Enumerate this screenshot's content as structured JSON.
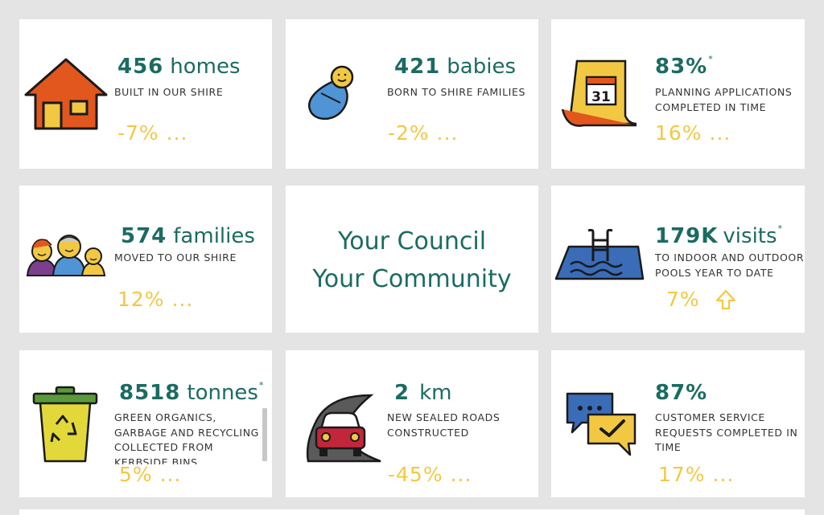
{
  "tiles": [
    {
      "number": "456",
      "unit": "homes",
      "asterisk": "",
      "description": [
        "BUILT IN OUR SHIRE"
      ],
      "trend": "-7% ..."
    },
    {
      "number": "421",
      "unit": "babies",
      "asterisk": "",
      "description": [
        "BORN TO SHIRE FAMILIES"
      ],
      "trend": "-2% ..."
    },
    {
      "number": "83%",
      "unit": "",
      "asterisk": "*",
      "description": [
        "PLANNING APPLICATIONS",
        "COMPLETED IN TIME"
      ],
      "trend": "16% ..."
    },
    {
      "number": "574",
      "unit": "families",
      "asterisk": "",
      "description": [
        "MOVED TO OUR SHIRE"
      ],
      "trend": "12% ..."
    },
    {
      "title_line1": "Your Council",
      "title_line2": "Your Community"
    },
    {
      "number": "179K",
      "unit": "visits",
      "asterisk": "*",
      "description": [
        "TO INDOOR AND OUTDOOR",
        "POOLS YEAR TO DATE"
      ],
      "trend": "7%",
      "trend_icon": "arrow-up-icon"
    },
    {
      "number": "8518",
      "unit": "tonnes",
      "asterisk": "*",
      "description": [
        "GREEN ORGANICS,",
        "GARBAGE AND RECYCLING",
        "COLLECTED FROM",
        "KERBSIDE BINS"
      ],
      "trend": "5% ..."
    },
    {
      "number": "2",
      "unit": "km",
      "asterisk": "",
      "description": [
        "NEW SEALED ROADS",
        "CONSTRUCTED"
      ],
      "trend": "-45% ..."
    },
    {
      "number": "87%",
      "unit": "",
      "asterisk": "",
      "description": [
        "CUSTOMER SERVICE",
        "REQUESTS COMPLETED IN",
        "TIME"
      ],
      "trend": "17% ..."
    }
  ],
  "icons": [
    "house-icon",
    "baby-icon",
    "calendar-icon",
    "family-icon",
    "pool-icon",
    "bin-icon",
    "road-car-icon",
    "chat-check-icon"
  ],
  "colors": {
    "accent_teal": "#1b6b62",
    "trend_yellow": "#f2c843",
    "background": "#e4e4e4",
    "tile": "#ffffff"
  }
}
